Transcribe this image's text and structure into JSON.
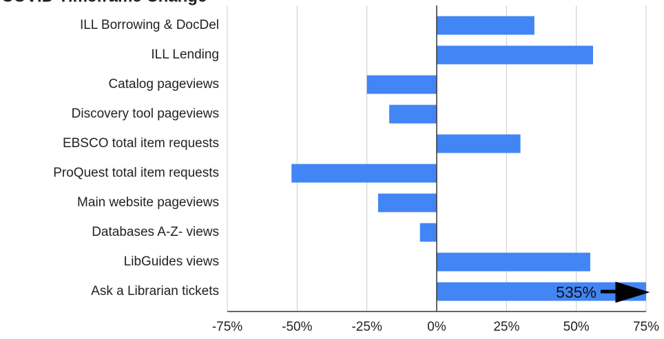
{
  "chart_data": {
    "type": "bar",
    "orientation": "horizontal",
    "title": "COVID Timeframe Change",
    "categories": [
      "ILL Borrowing & DocDel",
      "ILL Lending",
      "Catalog pageviews",
      "Discovery tool pageviews",
      "EBSCO total item requests",
      "ProQuest  total item requests",
      "Main website pageviews",
      "Databases A-Z- views",
      "LibGuides views",
      "Ask a Librarian tickets"
    ],
    "values": [
      35,
      56,
      -25,
      -17,
      30,
      -52,
      -21,
      -6,
      55,
      535
    ],
    "value_labels": [
      null,
      null,
      null,
      null,
      null,
      null,
      null,
      null,
      null,
      "535%"
    ],
    "color": "#4285f4",
    "xlim": [
      -75,
      75
    ],
    "xticks": [
      {
        "value": -75,
        "label": "-75%"
      },
      {
        "value": -50,
        "label": "-50%"
      },
      {
        "value": -25,
        "label": "-25%"
      },
      {
        "value": 0,
        "label": "0%"
      },
      {
        "value": 25,
        "label": "25%"
      },
      {
        "value": 50,
        "label": "50%"
      },
      {
        "value": 75,
        "label": "75%"
      }
    ],
    "grid": true
  }
}
